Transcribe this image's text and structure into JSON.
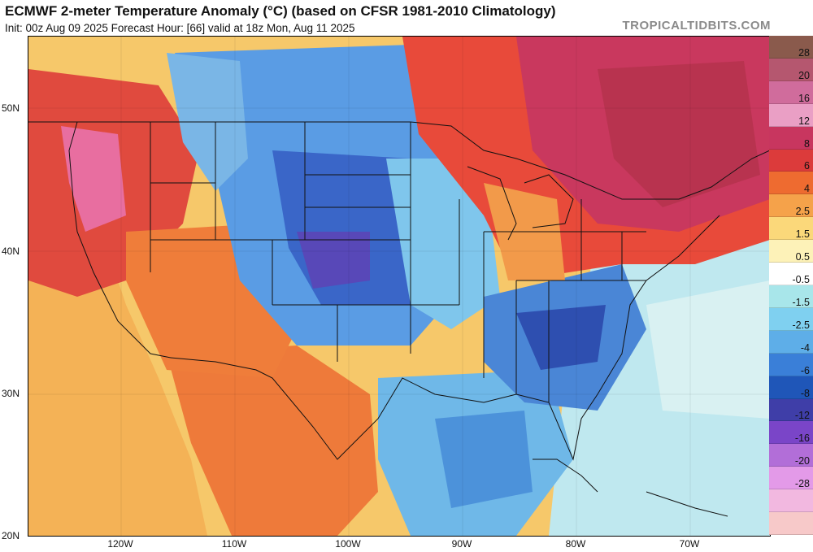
{
  "header": {
    "title": "ECMWF 2-meter Temperature Anomaly (°C) (based on CFSR 1981-2010 Climatology)",
    "subtitle": "Init: 00z Aug 09 2025   Forecast Hour: [66]   valid at 18z Mon, Aug 11 2025",
    "brand": "TROPICALTIDBITS.COM"
  },
  "map": {
    "lat_labels": [
      "50N",
      "40N",
      "30N",
      "20N"
    ],
    "lon_labels": [
      "120W",
      "110W",
      "100W",
      "90W",
      "80W",
      "70W"
    ]
  },
  "colorbar": {
    "levels": [
      "28",
      "20",
      "16",
      "12",
      "8",
      "6",
      "4",
      "2.5",
      "1.5",
      "0.5",
      "-0.5",
      "-1.5",
      "-2.5",
      "-4",
      "-6",
      "-8",
      "-12",
      "-16",
      "-20",
      "-28"
    ],
    "colors": [
      "#e7c6b8",
      "#8a5a4c",
      "#b5576f",
      "#d06c9c",
      "#ea9fc5",
      "#c8365f",
      "#dc3b3b",
      "#ee6b30",
      "#f5a24a",
      "#fbd87a",
      "#fdf2b8",
      "#ffffff",
      "#a8e6ea",
      "#7fd0f0",
      "#5eaee8",
      "#3a7fd8",
      "#1f56b8",
      "#3f3ea8",
      "#7a45c8",
      "#b26ed8",
      "#e39ae8",
      "#f2b8e0",
      "#f7c9c9"
    ]
  }
}
